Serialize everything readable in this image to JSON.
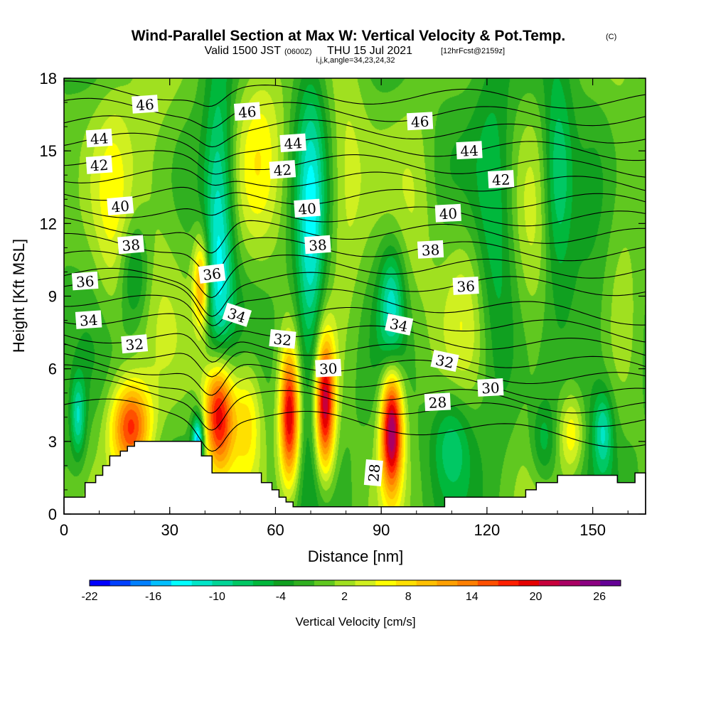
{
  "title": {
    "main": "Wind-Parallel Section at Max W: Vertical Velocity & Pot.Temp.",
    "copyright": "(C)",
    "valid_prefix": "Valid 1500 JST",
    "valid_utc": "(0600Z)",
    "valid_date": "THU 15 Jul 2021",
    "forecast": "[12hrFcst@2159z]",
    "indices": "i,j,k,angle=34,23,24,32"
  },
  "chart_data": {
    "type": "heatmap",
    "xlabel": "Distance [nm]",
    "ylabel": "Height [Kft MSL]",
    "xlim": [
      0,
      165
    ],
    "ylim": [
      0,
      18
    ],
    "x_ticks": [
      {
        "value": 0,
        "label": "0"
      },
      {
        "value": 30,
        "label": "30"
      },
      {
        "value": 60,
        "label": "60"
      },
      {
        "value": 90,
        "label": "90"
      },
      {
        "value": 120,
        "label": "120"
      },
      {
        "value": 150,
        "label": "150"
      }
    ],
    "y_ticks": [
      {
        "value": 0,
        "label": "0"
      },
      {
        "value": 3,
        "label": "3"
      },
      {
        "value": 6,
        "label": "6"
      },
      {
        "value": 9,
        "label": "9"
      },
      {
        "value": 12,
        "label": "12"
      },
      {
        "value": 15,
        "label": "15"
      },
      {
        "value": 18,
        "label": "18"
      }
    ],
    "background_value": 0,
    "updrafts": [
      {
        "x": 4,
        "y": 4.0,
        "sx": 1.5,
        "sy": 1.2,
        "value": -10
      },
      {
        "x": 14,
        "y": 12.0,
        "sx": 4,
        "sy": 4,
        "value": 5
      },
      {
        "x": 20,
        "y": 10.0,
        "sx": 3,
        "sy": 1.6,
        "value": -7
      },
      {
        "x": 19,
        "y": 3.6,
        "sx": 4,
        "sy": 1.3,
        "value": 18
      },
      {
        "x": 26,
        "y": 13.5,
        "sx": 6,
        "sy": 5,
        "value": 4
      },
      {
        "x": 39,
        "y": 9.5,
        "sx": 1.6,
        "sy": 1.4,
        "value": 14
      },
      {
        "x": 44,
        "y": 4.2,
        "sx": 3,
        "sy": 1.8,
        "value": 26
      },
      {
        "x": 52,
        "y": 4.0,
        "sx": 3,
        "sy": 1.8,
        "value": 9
      },
      {
        "x": 38,
        "y": 3.0,
        "sx": 1.2,
        "sy": 0.8,
        "value": -17
      },
      {
        "x": 44,
        "y": 11.0,
        "sx": 3,
        "sy": 5,
        "value": -13
      },
      {
        "x": 56,
        "y": 15.0,
        "sx": 5,
        "sy": 3,
        "value": 6
      },
      {
        "x": 64,
        "y": 4.0,
        "sx": 2,
        "sy": 2,
        "value": 22
      },
      {
        "x": 74,
        "y": 4.5,
        "sx": 2,
        "sy": 2,
        "value": 24
      },
      {
        "x": 70,
        "y": 11.0,
        "sx": 3,
        "sy": 5,
        "value": -12
      },
      {
        "x": 80,
        "y": 14.0,
        "sx": 4,
        "sy": 4,
        "value": 5
      },
      {
        "x": 93,
        "y": 3.5,
        "sx": 2.2,
        "sy": 1.8,
        "value": 26
      },
      {
        "x": 93,
        "y": 8.5,
        "sx": 2.5,
        "sy": 1.8,
        "value": -10
      },
      {
        "x": 100,
        "y": 12.0,
        "sx": 4,
        "sy": 4,
        "value": 3
      },
      {
        "x": 110,
        "y": 3.0,
        "sx": 4,
        "sy": 1.5,
        "value": -7
      },
      {
        "x": 114,
        "y": 9.0,
        "sx": 5,
        "sy": 3,
        "value": 4
      },
      {
        "x": 122,
        "y": 12.0,
        "sx": 4,
        "sy": 5,
        "value": -6
      },
      {
        "x": 133,
        "y": 9.0,
        "sx": 4,
        "sy": 4,
        "value": 4
      },
      {
        "x": 140,
        "y": 14.0,
        "sx": 3,
        "sy": 3,
        "value": -9
      },
      {
        "x": 136,
        "y": 3.0,
        "sx": 2.5,
        "sy": 1.2,
        "value": -6
      },
      {
        "x": 144,
        "y": 3.3,
        "sx": 2.5,
        "sy": 1.2,
        "value": 8
      },
      {
        "x": 153,
        "y": 3.4,
        "sx": 2,
        "sy": 1.2,
        "value": -9
      },
      {
        "x": 158,
        "y": 12.0,
        "sx": 4,
        "sy": 5,
        "value": 3
      },
      {
        "x": 150,
        "y": 7.0,
        "sx": 5,
        "sy": 3,
        "value": -4
      }
    ],
    "terrain": [
      [
        0,
        0.7
      ],
      [
        6,
        0.7
      ],
      [
        6,
        1.3
      ],
      [
        9,
        1.3
      ],
      [
        9,
        1.6
      ],
      [
        11,
        1.6
      ],
      [
        11,
        2.0
      ],
      [
        13,
        2.0
      ],
      [
        13,
        2.4
      ],
      [
        16,
        2.4
      ],
      [
        16,
        2.6
      ],
      [
        18,
        2.6
      ],
      [
        18,
        2.8
      ],
      [
        20,
        2.8
      ],
      [
        20,
        3.0
      ],
      [
        39,
        3.0
      ],
      [
        39,
        2.4
      ],
      [
        42,
        2.4
      ],
      [
        42,
        1.7
      ],
      [
        56,
        1.7
      ],
      [
        56,
        1.3
      ],
      [
        59,
        1.3
      ],
      [
        59,
        1.0
      ],
      [
        61,
        1.0
      ],
      [
        61,
        0.7
      ],
      [
        63,
        0.7
      ],
      [
        63,
        0.5
      ],
      [
        65,
        0.5
      ],
      [
        65,
        0.3
      ],
      [
        108,
        0.3
      ],
      [
        108,
        0.7
      ],
      [
        131,
        0.7
      ],
      [
        131,
        1.0
      ],
      [
        134,
        1.0
      ],
      [
        134,
        1.3
      ],
      [
        140,
        1.3
      ],
      [
        140,
        1.6
      ],
      [
        157,
        1.6
      ],
      [
        157,
        1.3
      ],
      [
        162,
        1.3
      ],
      [
        162,
        1.7
      ],
      [
        165,
        1.7
      ]
    ],
    "isentropes": [
      {
        "value": 28,
        "y": 3.8
      },
      {
        "value": 29,
        "y": 4.6
      },
      {
        "value": 30,
        "y": 5.1
      },
      {
        "value": 31,
        "y": 5.6
      },
      {
        "value": 32,
        "y": 6.2
      },
      {
        "value": 33,
        "y": 6.8
      },
      {
        "value": 34,
        "y": 7.5
      },
      {
        "value": 35,
        "y": 8.2
      },
      {
        "value": 36,
        "y": 8.9
      },
      {
        "value": 37,
        "y": 9.6
      },
      {
        "value": 38,
        "y": 10.3
      },
      {
        "value": 39,
        "y": 11.0
      },
      {
        "value": 40,
        "y": 11.7
      },
      {
        "value": 41,
        "y": 12.4
      },
      {
        "value": 42,
        "y": 13.1
      },
      {
        "value": 43,
        "y": 13.8
      },
      {
        "value": 44,
        "y": 14.5
      },
      {
        "value": 45,
        "y": 15.2
      },
      {
        "value": 46,
        "y": 15.9
      },
      {
        "value": 47,
        "y": 16.6
      },
      {
        "value": 48,
        "y": 17.3
      }
    ],
    "isentrope_labels": [
      {
        "text": "46",
        "x": 23,
        "y": 16.9,
        "angle": -4
      },
      {
        "text": "46",
        "x": 52,
        "y": 16.6,
        "angle": -4
      },
      {
        "text": "46",
        "x": 101,
        "y": 16.2,
        "angle": -3
      },
      {
        "text": "44",
        "x": 10,
        "y": 15.5,
        "angle": -4
      },
      {
        "text": "44",
        "x": 65,
        "y": 15.3,
        "angle": -4
      },
      {
        "text": "44",
        "x": 115,
        "y": 15.0,
        "angle": -3
      },
      {
        "text": "42",
        "x": 10,
        "y": 14.4,
        "angle": -4
      },
      {
        "text": "42",
        "x": 62,
        "y": 14.2,
        "angle": -4
      },
      {
        "text": "42",
        "x": 124,
        "y": 13.8,
        "angle": -3
      },
      {
        "text": "40",
        "x": 16,
        "y": 12.7,
        "angle": -5
      },
      {
        "text": "40",
        "x": 69,
        "y": 12.6,
        "angle": -4
      },
      {
        "text": "40",
        "x": 109,
        "y": 12.4,
        "angle": -3
      },
      {
        "text": "38",
        "x": 19,
        "y": 11.1,
        "angle": -5
      },
      {
        "text": "38",
        "x": 72,
        "y": 11.1,
        "angle": -4
      },
      {
        "text": "38",
        "x": 104,
        "y": 10.9,
        "angle": -3
      },
      {
        "text": "36",
        "x": 6,
        "y": 9.6,
        "angle": -4
      },
      {
        "text": "36",
        "x": 42,
        "y": 9.9,
        "angle": -7
      },
      {
        "text": "36",
        "x": 114,
        "y": 9.4,
        "angle": -3
      },
      {
        "text": "34",
        "x": 7,
        "y": 8.0,
        "angle": -4
      },
      {
        "text": "34",
        "x": 49,
        "y": 8.2,
        "angle": 18
      },
      {
        "text": "34",
        "x": 95,
        "y": 7.8,
        "angle": 12
      },
      {
        "text": "32",
        "x": 20,
        "y": 7.0,
        "angle": -5
      },
      {
        "text": "32",
        "x": 62,
        "y": 7.2,
        "angle": 6
      },
      {
        "text": "32",
        "x": 108,
        "y": 6.3,
        "angle": 12
      },
      {
        "text": "30",
        "x": 75,
        "y": 6.0,
        "angle": -3
      },
      {
        "text": "30",
        "x": 121,
        "y": 5.2,
        "angle": -3
      },
      {
        "text": "28",
        "x": 106,
        "y": 4.6,
        "angle": -3
      },
      {
        "text": "28",
        "x": 88,
        "y": 1.7,
        "angle": -85
      }
    ],
    "colorbar": {
      "title": "Vertical Velocity [cm/s]",
      "min": -22,
      "max": 28,
      "step": 2,
      "tick_labels": [
        "-22",
        "-16",
        "-10",
        "-4",
        "2",
        "8",
        "14",
        "20",
        "26"
      ],
      "colors": [
        "#0000ff",
        "#0040ff",
        "#0080ff",
        "#00bfff",
        "#00ffff",
        "#00e6c8",
        "#00d596",
        "#00c864",
        "#00b83c",
        "#10a020",
        "#30b020",
        "#60c820",
        "#a0e020",
        "#d0f020",
        "#ffff00",
        "#ffe000",
        "#ffc000",
        "#ffa000",
        "#ff8000",
        "#ff5000",
        "#ff2000",
        "#e60000",
        "#c8003c",
        "#aa0064",
        "#8c0082",
        "#640096"
      ]
    }
  }
}
